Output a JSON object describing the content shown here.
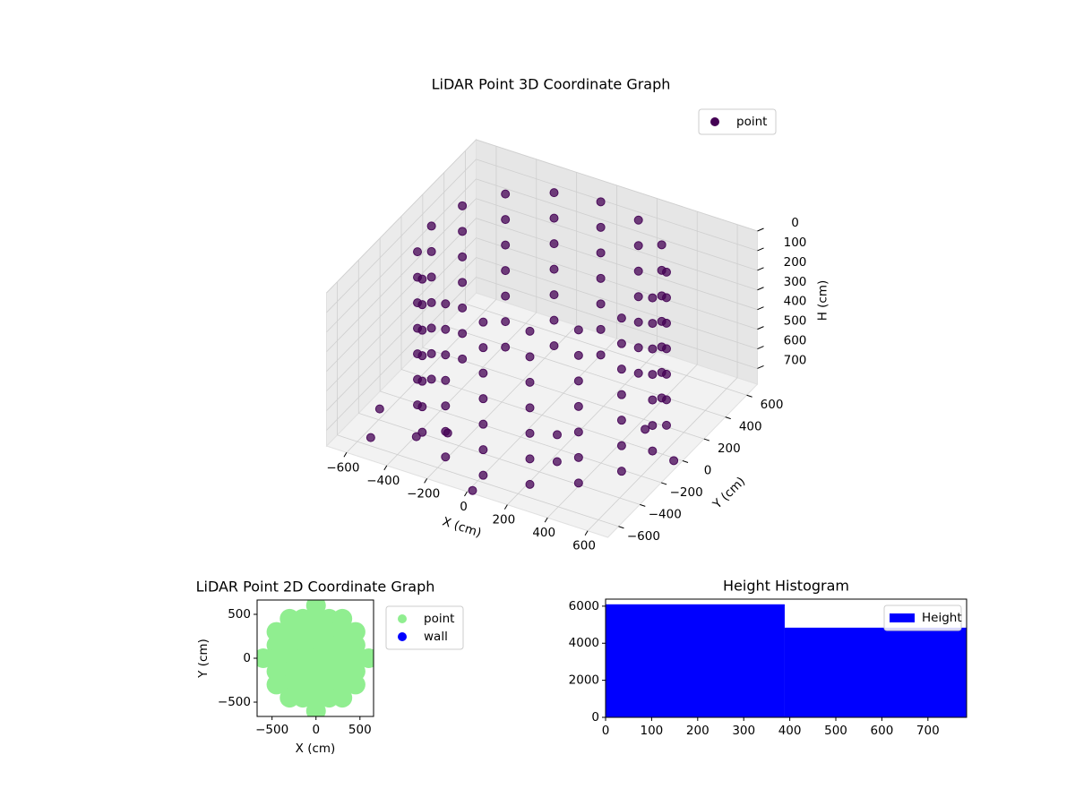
{
  "chart_data": [
    {
      "type": "scatter3d",
      "title": "LiDAR Point 3D Coordinate Graph",
      "xlabel": "X (cm)",
      "ylabel": "Y (cm)",
      "zlabel": "H (cm)",
      "xlim": [
        -700,
        700
      ],
      "ylim": [
        -700,
        700
      ],
      "zlim": [
        0,
        780
      ],
      "z_inverted": true,
      "grid": true,
      "legend": "upper right",
      "xticks": [
        {
          "value": -600,
          "label": "−600"
        },
        {
          "value": -400,
          "label": "−400"
        },
        {
          "value": -200,
          "label": "−200"
        },
        0,
        200,
        400,
        600
      ],
      "yticks": [
        {
          "value": -600,
          "label": "−600"
        },
        {
          "value": -400,
          "label": "−400"
        },
        {
          "value": -200,
          "label": "−200"
        },
        0,
        200,
        400,
        600
      ],
      "zticks": [
        0,
        100,
        200,
        300,
        400,
        500,
        600,
        700
      ],
      "series": [
        {
          "name": "point",
          "color": "#440154",
          "x": [
            550,
            508,
            389,
            210,
            0,
            -210,
            -389,
            -508,
            -550,
            -508,
            -389,
            -210,
            0,
            210,
            389,
            508,
            550,
            508,
            389,
            210,
            0,
            -210,
            -389,
            -508,
            -550,
            -508,
            -389,
            -210,
            0,
            210,
            389,
            508,
            550,
            508,
            389,
            210,
            0,
            -210,
            -389,
            -508,
            -550,
            -508,
            -389,
            -210,
            0,
            210,
            389,
            508,
            550,
            508,
            389,
            210,
            0,
            -210,
            -389,
            -508,
            -550,
            -508,
            -389,
            -210,
            0,
            210,
            389,
            508,
            550,
            508,
            389,
            210,
            0,
            -210,
            -389,
            -508,
            -550,
            -508,
            -389,
            -210,
            0,
            210,
            389,
            508,
            550,
            508,
            389,
            210,
            0,
            -210,
            -389,
            -508,
            -550,
            -508,
            -389,
            -210,
            0,
            210,
            389,
            508,
            550,
            508,
            389,
            210,
            0,
            -210,
            -389,
            -508,
            -550,
            -508,
            -389,
            -210,
            0,
            210,
            389,
            508,
            -564,
            -395,
            -290,
            16,
            229,
            442,
            666,
            -636,
            130
          ],
          "y": [
            0,
            210,
            389,
            508,
            550,
            508,
            389,
            210,
            0,
            -210,
            -389,
            -508,
            -550,
            -508,
            -389,
            -210,
            0,
            210,
            389,
            508,
            550,
            508,
            389,
            210,
            0,
            -210,
            -389,
            -508,
            -550,
            -508,
            -389,
            -210,
            0,
            210,
            389,
            508,
            550,
            508,
            389,
            210,
            0,
            -210,
            -389,
            -508,
            -550,
            -508,
            -389,
            -210,
            0,
            210,
            389,
            508,
            550,
            508,
            389,
            210,
            0,
            -210,
            -389,
            -508,
            -550,
            -508,
            -389,
            -210,
            0,
            210,
            389,
            508,
            550,
            508,
            389,
            210,
            0,
            -210,
            -389,
            -508,
            -550,
            -508,
            -389,
            -210,
            0,
            210,
            389,
            508,
            550,
            508,
            389,
            210,
            0,
            -210,
            -389,
            -508,
            -550,
            -508,
            -389,
            -210,
            0,
            210,
            389,
            508,
            550,
            508,
            389,
            210,
            0,
            -210,
            -389,
            -508,
            -550,
            -508,
            -389,
            -210,
            -542,
            -433,
            -337,
            -680,
            -289,
            134,
            -19,
            -323,
            -102
          ],
          "z": [
            0,
            0,
            0,
            0,
            0,
            0,
            0,
            0,
            0,
            0,
            0,
            0,
            0,
            0,
            0,
            0,
            130,
            130,
            130,
            130,
            130,
            130,
            130,
            130,
            130,
            130,
            130,
            130,
            130,
            130,
            130,
            130,
            260,
            260,
            260,
            260,
            260,
            260,
            260,
            260,
            260,
            260,
            260,
            260,
            260,
            260,
            260,
            260,
            390,
            390,
            390,
            390,
            390,
            390,
            390,
            390,
            390,
            390,
            390,
            390,
            390,
            390,
            390,
            390,
            520,
            520,
            520,
            520,
            520,
            520,
            520,
            520,
            520,
            520,
            520,
            520,
            520,
            520,
            520,
            520,
            650,
            650,
            650,
            650,
            650,
            650,
            650,
            650,
            650,
            650,
            650,
            650,
            650,
            650,
            650,
            650,
            780,
            780,
            780,
            780,
            780,
            780,
            780,
            780,
            780,
            780,
            780,
            780,
            780,
            780,
            780,
            780,
            780,
            780,
            780,
            780,
            780,
            780,
            780,
            780,
            780
          ]
        }
      ]
    },
    {
      "type": "scatter",
      "title": "LiDAR Point 2D Coordinate Graph",
      "xlabel": "X (cm)",
      "ylabel": "Y (cm)",
      "xlim": [
        -670,
        655
      ],
      "ylim": [
        -663,
        663
      ],
      "legend": "outside right",
      "xticks": [
        {
          "value": -500,
          "label": "−500"
        },
        0,
        500
      ],
      "yticks": [
        {
          "value": -500,
          "label": "−500"
        },
        0,
        500
      ],
      "series": [
        {
          "name": "point",
          "color": "#90ee90",
          "x": [
            0,
            -300,
            -150,
            0,
            150,
            300,
            -450,
            -300,
            -150,
            0,
            150,
            300,
            450,
            -450,
            -300,
            -150,
            0,
            150,
            300,
            450,
            -600,
            -450,
            -300,
            -150,
            0,
            150,
            300,
            450,
            600,
            -450,
            -300,
            -150,
            0,
            150,
            300,
            450,
            -450,
            -300,
            -150,
            0,
            150,
            300,
            450,
            -300,
            -150,
            0,
            150,
            300,
            0
          ],
          "y": [
            600,
            450,
            450,
            450,
            450,
            450,
            300,
            300,
            300,
            300,
            300,
            300,
            300,
            150,
            150,
            150,
            150,
            150,
            150,
            150,
            0,
            0,
            0,
            0,
            0,
            0,
            0,
            0,
            0,
            -150,
            -150,
            -150,
            -150,
            -150,
            -150,
            -150,
            -300,
            -300,
            -300,
            -300,
            -300,
            -300,
            -300,
            -450,
            -450,
            -450,
            -450,
            -450,
            -600
          ]
        },
        {
          "name": "wall",
          "color": "#0000ff",
          "x": [],
          "y": []
        }
      ]
    },
    {
      "type": "histogram",
      "title": "Height Histogram",
      "legend": "upper right",
      "bins": [
        0,
        389,
        784
      ],
      "values": [
        6100,
        4840
      ],
      "name": "Height",
      "color": "#0000ff",
      "xlim": [
        0,
        784
      ],
      "ylim": [
        0,
        6380
      ],
      "xticks": [
        0,
        100,
        200,
        300,
        400,
        500,
        600,
        700
      ],
      "yticks": [
        0,
        2000,
        4000,
        6000
      ]
    }
  ]
}
